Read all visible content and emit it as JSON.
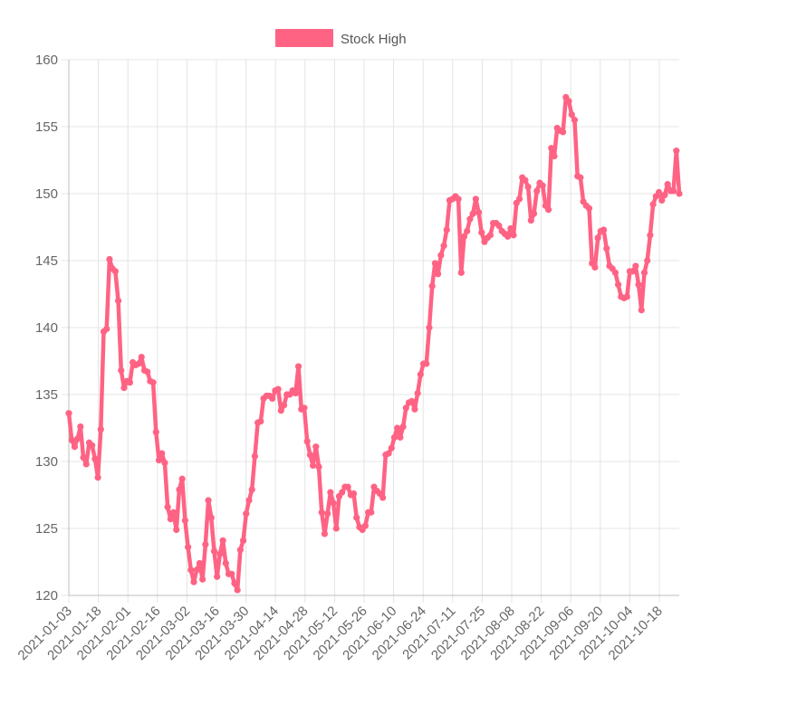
{
  "chart_data": {
    "type": "line",
    "legend": {
      "label": "Stock High",
      "position": "top"
    },
    "series": [
      {
        "name": "Stock High",
        "color": "#ff6384",
        "values": [
          133.6,
          131.6,
          131.1,
          131.7,
          132.6,
          130.3,
          129.8,
          131.4,
          131.2,
          130.2,
          128.8,
          132.4,
          139.7,
          139.9,
          145.1,
          144.4,
          144.2,
          142.0,
          136.8,
          135.5,
          136.0,
          135.9,
          137.4,
          137.2,
          137.3,
          137.8,
          136.8,
          136.7,
          136.0,
          135.9,
          132.2,
          130.1,
          130.6,
          129.9,
          126.6,
          125.7,
          126.2,
          124.9,
          127.9,
          128.7,
          125.6,
          123.6,
          121.9,
          121.0,
          121.9,
          122.4,
          121.2,
          123.8,
          127.1,
          125.8,
          123.3,
          121.4,
          123.1,
          124.1,
          122.4,
          121.6,
          121.6,
          120.9,
          120.4,
          123.4,
          124.1,
          126.1,
          127.1,
          127.9,
          130.4,
          132.9,
          133.0,
          134.7,
          134.9,
          134.9,
          134.7,
          135.3,
          135.4,
          133.8,
          134.2,
          135.0,
          135.0,
          135.3,
          135.1,
          137.1,
          133.9,
          134.0,
          131.5,
          130.5,
          129.7,
          131.1,
          129.6,
          126.2,
          124.6,
          126.1,
          127.7,
          126.9,
          125.0,
          127.4,
          127.7,
          128.1,
          128.1,
          127.5,
          127.6,
          125.8,
          125.1,
          124.9,
          125.2,
          126.2,
          126.2,
          128.1,
          127.8,
          127.6,
          127.3,
          130.5,
          130.6,
          131.0,
          131.8,
          132.5,
          131.8,
          132.6,
          134.0,
          134.4,
          134.5,
          133.9,
          135.1,
          136.5,
          137.3,
          137.3,
          140.0,
          143.1,
          144.8,
          144.0,
          145.4,
          146.1,
          147.3,
          149.5,
          149.6,
          149.8,
          149.6,
          144.1,
          146.8,
          147.2,
          148.1,
          148.5,
          149.6,
          148.6,
          147.1,
          146.4,
          146.7,
          146.9,
          147.8,
          147.8,
          147.6,
          147.2,
          147.0,
          146.8,
          147.4,
          146.9,
          149.3,
          149.6,
          151.2,
          151.0,
          150.5,
          148.0,
          148.5,
          150.2,
          150.8,
          150.6,
          149.1,
          148.8,
          153.4,
          152.8,
          154.9,
          154.7,
          154.6,
          157.2,
          156.9,
          155.9,
          155.5,
          151.3,
          151.2,
          149.4,
          149.1,
          148.9,
          144.8,
          144.5,
          146.7,
          147.2,
          147.3,
          145.9,
          144.6,
          144.4,
          144.1,
          143.2,
          142.3,
          142.2,
          142.3,
          144.2,
          144.2,
          144.6,
          143.2,
          141.3,
          144.1,
          145.0,
          146.9,
          149.2,
          149.8,
          150.1,
          149.5,
          149.9,
          150.7,
          150.2,
          150.2,
          153.2,
          150.0
        ]
      }
    ],
    "x_tick_labels": [
      "2021-01-03",
      "2021-01-18",
      "2021-02-01",
      "2021-02-16",
      "2021-03-02",
      "2021-03-16",
      "2021-03-30",
      "2021-04-14",
      "2021-04-28",
      "2021-05-12",
      "2021-05-26",
      "2021-06-10",
      "2021-06-24",
      "2021-07-11",
      "2021-07-25",
      "2021-08-08",
      "2021-08-22",
      "2021-09-06",
      "2021-09-20",
      "2021-10-04",
      "2021-10-18"
    ],
    "y_ticks": [
      120,
      125,
      130,
      135,
      140,
      145,
      150,
      155,
      160
    ],
    "ylim": [
      120,
      160
    ],
    "grid": true,
    "title": "",
    "xlabel": "",
    "ylabel": ""
  }
}
